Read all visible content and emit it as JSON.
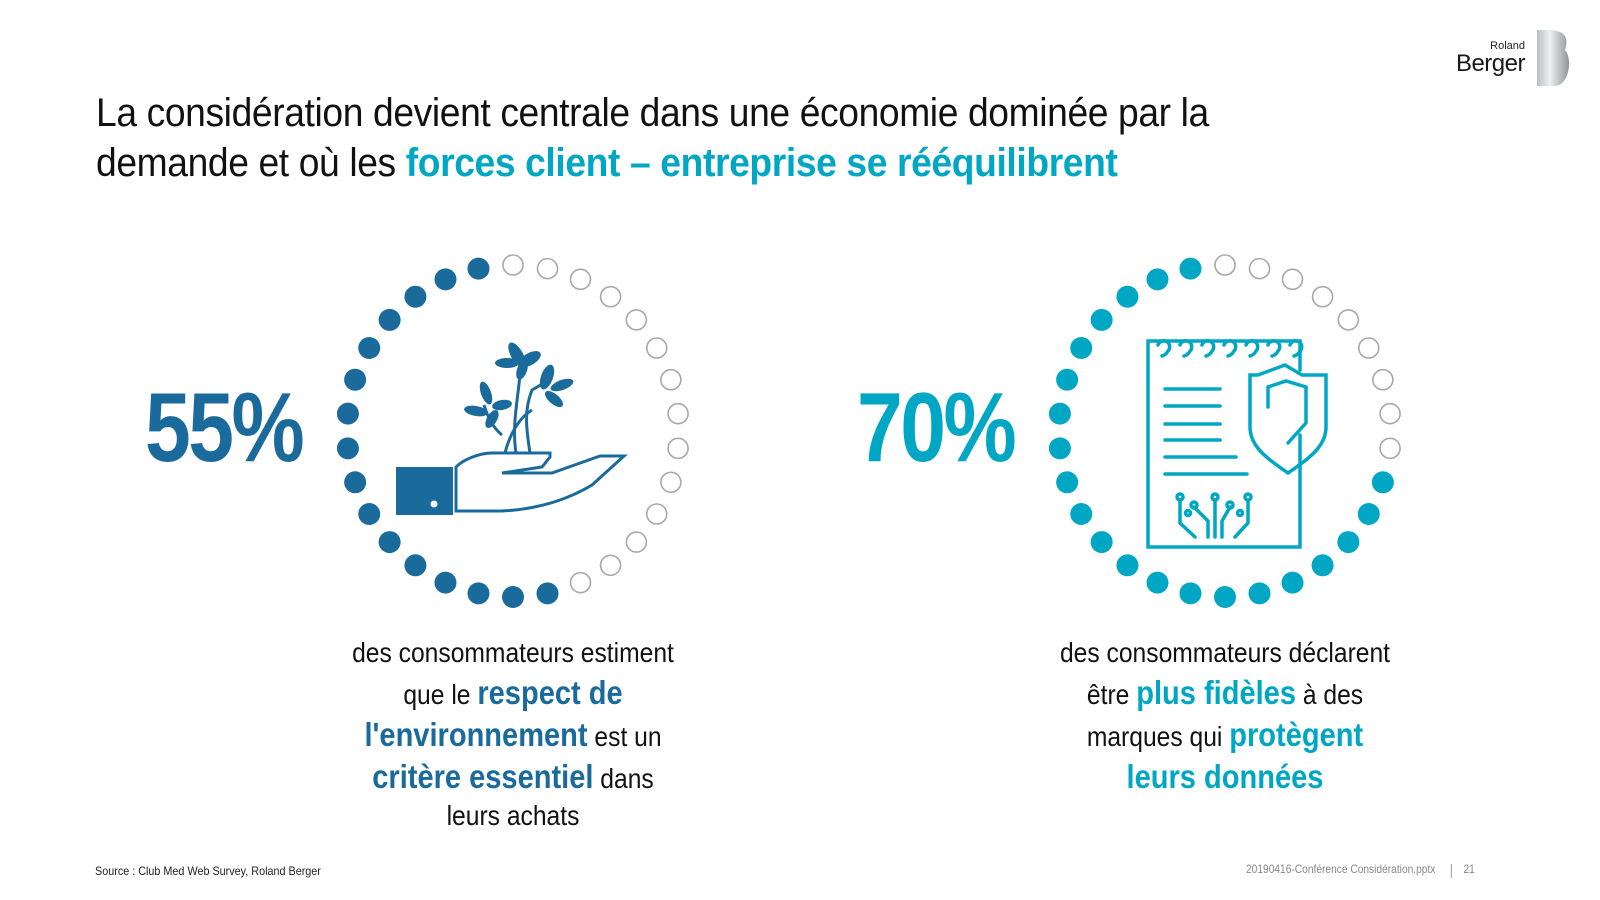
{
  "logo": {
    "line1": "Roland",
    "line2": "Berger",
    "icon": "roland-berger-b-mark"
  },
  "title": {
    "line1": "La considération devient centrale dans une économie dominée par la",
    "line2_plain": "demande et où les ",
    "line2_highlight": "forces client – entreprise se rééquilibrent",
    "highlight_color": "#00a7c4"
  },
  "stats": [
    {
      "value": "55%",
      "color": "#1a6b9c",
      "icon": "hand-holding-plant-icon",
      "dots_total": 30,
      "dots_filled": 16,
      "caption": {
        "l1": "des consommateurs  estiment",
        "l2_plain": "que le ",
        "l2_bold": "respect de",
        "l3_bold": "l'environnement",
        "l3_plain": " est un",
        "l4_bold": "critère essentiel",
        "l4_plain": " dans",
        "l5": "leurs achats"
      }
    },
    {
      "value": "70%",
      "color": "#00a7c4",
      "icon": "notepad-shield-circuit-icon",
      "dots_total": 30,
      "dots_filled": 21,
      "caption": {
        "l1": "des consommateurs  déclarent",
        "l2_plain": "être ",
        "l2_bold": "plus fidèles",
        "l2_plain2": " à des",
        "l3_plain": "marques  qui ",
        "l3_bold": "protègent",
        "l4_bold": "leurs données"
      }
    }
  ],
  "colors": {
    "outline_dot": "#a8a8a8",
    "text": "#111111"
  },
  "footer": {
    "source": "Source : Club Med Web Survey, Roland Berger",
    "file": "20190416-Conférence  Considération.pptx",
    "page": "21"
  }
}
